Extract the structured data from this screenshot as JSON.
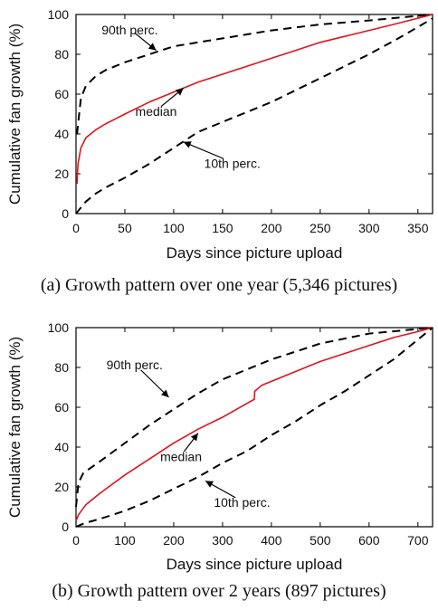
{
  "chart_data": [
    {
      "type": "line",
      "caption": "(a) Growth pattern over one year (5,346 pictures)",
      "xlabel": "Days since picture upload",
      "ylabel": "Cumulative fan growth (%)",
      "xlim": [
        0,
        365
      ],
      "ylim": [
        0,
        100
      ],
      "xticks": [
        0,
        50,
        100,
        150,
        200,
        250,
        300,
        350
      ],
      "yticks": [
        0,
        20,
        40,
        60,
        80,
        100
      ],
      "grid": false,
      "legend": "none",
      "series": [
        {
          "key": "p90",
          "color": "#000000",
          "style": "dashed",
          "x": [
            1,
            5,
            10,
            20,
            30,
            50,
            75,
            100,
            125,
            150,
            175,
            200,
            250,
            300,
            365
          ],
          "y": [
            40,
            58,
            64,
            69,
            72,
            76,
            80,
            84,
            86,
            88,
            90,
            92,
            95,
            97,
            100
          ]
        },
        {
          "key": "median",
          "color": "#e0141b",
          "style": "solid",
          "x": [
            1,
            2,
            5,
            10,
            20,
            30,
            50,
            75,
            100,
            125,
            150,
            175,
            200,
            225,
            250,
            275,
            300,
            325,
            365
          ],
          "y": [
            15,
            25,
            33,
            38,
            42,
            45,
            50,
            56,
            61,
            66,
            70,
            74,
            78,
            82,
            86,
            89,
            92,
            95,
            100
          ]
        },
        {
          "key": "p10",
          "color": "#000000",
          "style": "dashed",
          "x": [
            0,
            5,
            10,
            20,
            30,
            50,
            75,
            100,
            125,
            150,
            175,
            200,
            250,
            300,
            330,
            365
          ],
          "y": [
            0,
            3,
            6,
            10,
            13,
            18,
            25,
            33,
            41,
            46,
            51,
            56,
            68,
            80,
            88,
            98
          ]
        }
      ],
      "annotations": [
        {
          "text": "90th perc.",
          "x": 55,
          "y": 90,
          "ax": 82,
          "ay": 82
        },
        {
          "text": "median",
          "x": 82,
          "y": 49,
          "ax": 110,
          "ay": 63
        },
        {
          "text": "10th perc.",
          "x": 160,
          "y": 23,
          "ax": 110,
          "ay": 36
        }
      ]
    },
    {
      "type": "line",
      "caption": "(b) Growth pattern over 2 years (897 pictures)",
      "xlabel": "Days since picture upload",
      "ylabel": "Cumulative fan growth (%)",
      "xlim": [
        0,
        730
      ],
      "ylim": [
        0,
        100
      ],
      "xticks": [
        0,
        100,
        200,
        300,
        400,
        500,
        600,
        700
      ],
      "yticks": [
        0,
        20,
        40,
        60,
        80,
        100
      ],
      "grid": false,
      "legend": "none",
      "series": [
        {
          "key": "p90",
          "color": "#000000",
          "style": "dashed",
          "x": [
            0,
            5,
            15,
            50,
            100,
            150,
            200,
            250,
            300,
            350,
            400,
            500,
            600,
            730
          ],
          "y": [
            10,
            22,
            27,
            33,
            42,
            51,
            59,
            67,
            74,
            79,
            84,
            92,
            97,
            100
          ]
        },
        {
          "key": "median",
          "color": "#e0141b",
          "style": "solid",
          "x": [
            0,
            5,
            20,
            50,
            100,
            150,
            200,
            250,
            300,
            365,
            366,
            380,
            400,
            450,
            500,
            550,
            600,
            650,
            700,
            730
          ],
          "y": [
            3,
            6,
            11,
            17,
            26,
            34,
            42,
            49,
            55,
            64,
            68,
            71,
            73,
            78,
            83,
            87,
            91,
            95,
            98,
            100
          ]
        },
        {
          "key": "p10",
          "color": "#000000",
          "style": "dashed",
          "x": [
            0,
            20,
            50,
            100,
            150,
            200,
            250,
            300,
            350,
            400,
            450,
            500,
            550,
            600,
            650,
            700,
            730
          ],
          "y": [
            0,
            2,
            4,
            8,
            13,
            19,
            25,
            32,
            38,
            46,
            53,
            61,
            68,
            76,
            84,
            94,
            100
          ]
        }
      ],
      "annotations": [
        {
          "text": "90th perc.",
          "x": 120,
          "y": 79,
          "ax": 190,
          "ay": 65
        },
        {
          "text": "median",
          "x": 215,
          "y": 33,
          "ax": 250,
          "ay": 47
        },
        {
          "text": "10th perc.",
          "x": 340,
          "y": 10,
          "ax": 265,
          "ay": 23
        }
      ]
    }
  ]
}
